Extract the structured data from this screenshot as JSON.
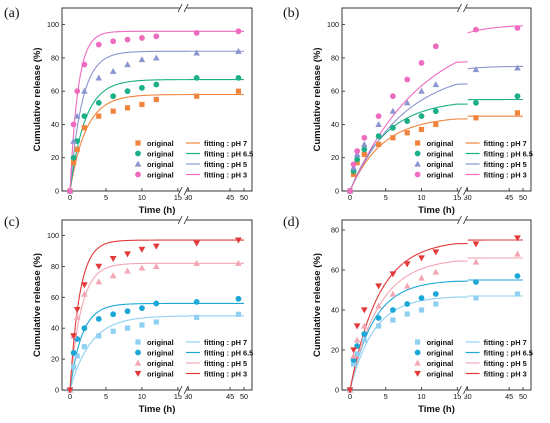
{
  "figure": {
    "colors": {
      "pH 7": "#f0843c",
      "pH 6.5": "#1aaf86",
      "pH 5": "#8b95cf",
      "pH 3": "#ee6bbf",
      "c_pH 7": "#8fd0f2",
      "c_pH 6.5": "#1ba7d8",
      "c_pH 5": "#f3a6b3",
      "c_pH 3": "#e23a3a"
    }
  },
  "chart_data": [
    {
      "panel": "(a)",
      "type": "scatter",
      "xlabel": "Time (h)",
      "ylabel": "Cumulative release (%)",
      "ylim": [
        0,
        110
      ],
      "yticks": [
        0,
        20,
        40,
        60,
        80,
        100
      ],
      "xticks": [
        "0",
        "5",
        "10",
        "15",
        "30",
        "45",
        "50"
      ],
      "x_axis_break": "between 15 and 30",
      "markers": [
        "square",
        "circle",
        "triangle-up",
        "circle"
      ],
      "legend_position": "bottom-right",
      "series": [
        {
          "name": "original",
          "fit_name": "fitting : pH 7",
          "key": "pH 7",
          "x": [
            0,
            0.5,
            1,
            2,
            4,
            6,
            8,
            10,
            12,
            24,
            48
          ],
          "y": [
            0,
            17,
            25,
            38,
            45,
            48,
            50,
            52,
            55,
            57,
            60
          ],
          "fit_ymax": 58,
          "fit_k": 0.45
        },
        {
          "name": "original",
          "fit_name": "fitting : pH 6.5",
          "key": "pH 6.5",
          "x": [
            0,
            0.5,
            1,
            2,
            4,
            6,
            8,
            10,
            12,
            24,
            48
          ],
          "y": [
            0,
            20,
            30,
            45,
            53,
            57,
            60,
            62,
            64,
            68,
            68
          ],
          "fit_ymax": 67,
          "fit_k": 0.48
        },
        {
          "name": "original",
          "fit_name": "fitting : pH 5",
          "key": "pH 5",
          "x": [
            0,
            0.5,
            1,
            2,
            4,
            6,
            8,
            10,
            12,
            24,
            48
          ],
          "y": [
            0,
            30,
            45,
            60,
            68,
            72,
            76,
            79,
            80,
            83,
            84
          ],
          "fit_ymax": 84,
          "fit_k": 0.6
        },
        {
          "name": "original",
          "fit_name": "fitting : pH 3",
          "key": "pH 3",
          "x": [
            0,
            0.5,
            1,
            2,
            4,
            6,
            8,
            10,
            12,
            24,
            48
          ],
          "y": [
            0,
            40,
            60,
            76,
            88,
            90,
            91,
            92,
            93,
            95,
            96
          ],
          "fit_ymax": 96,
          "fit_k": 0.9
        }
      ]
    },
    {
      "panel": "(b)",
      "type": "scatter",
      "xlabel": "Time (h)",
      "ylabel": "Cumulative release (%)",
      "ylim": [
        0,
        110
      ],
      "yticks": [
        0,
        20,
        40,
        60,
        80,
        100
      ],
      "xticks": [
        "0",
        "5",
        "10",
        "15",
        "30",
        "45",
        "50"
      ],
      "x_axis_break": "between 15 and 30",
      "markers": [
        "square",
        "circle",
        "triangle-up",
        "circle"
      ],
      "legend_position": "bottom-right",
      "series": [
        {
          "name": "original",
          "fit_name": "fitting : pH 7",
          "key": "pH 7",
          "x": [
            0,
            0.5,
            1,
            2,
            4,
            6,
            8,
            10,
            12,
            24,
            48
          ],
          "y": [
            0,
            10,
            17,
            22,
            28,
            32,
            35,
            37,
            40,
            44,
            47
          ],
          "fit_ymax": 45,
          "fit_k": 0.22
        },
        {
          "name": "original",
          "fit_name": "fitting : pH 6.5",
          "key": "pH 6.5",
          "x": [
            0,
            0.5,
            1,
            2,
            4,
            6,
            8,
            10,
            12,
            24,
            48
          ],
          "y": [
            0,
            12,
            19,
            25,
            33,
            38,
            42,
            45,
            48,
            53,
            57
          ],
          "fit_ymax": 55,
          "fit_k": 0.2
        },
        {
          "name": "original",
          "fit_name": "fitting : pH 5",
          "key": "pH 5",
          "x": [
            0,
            0.5,
            1,
            2,
            4,
            6,
            8,
            10,
            12,
            24,
            48
          ],
          "y": [
            0,
            14,
            22,
            28,
            40,
            48,
            53,
            60,
            64,
            73,
            74
          ],
          "fit_ymax": 75,
          "fit_k": 0.13
        },
        {
          "name": "original",
          "fit_name": "fitting : pH 3",
          "key": "pH 3",
          "x": [
            0,
            0.5,
            1,
            2,
            4,
            6,
            8,
            10,
            12,
            24,
            48
          ],
          "y": [
            0,
            16,
            24,
            32,
            45,
            57,
            67,
            77,
            87,
            97,
            98
          ],
          "fit_ymax": 100,
          "fit_k": 0.1
        }
      ]
    },
    {
      "panel": "(c)",
      "type": "scatter",
      "xlabel": "Time (h)",
      "ylabel": "Cumulative release (%)",
      "ylim": [
        0,
        110
      ],
      "yticks": [
        0,
        20,
        40,
        60,
        80,
        100
      ],
      "xticks": [
        "0",
        "5",
        "10",
        "15",
        "30",
        "45",
        "50"
      ],
      "x_axis_break": "between 15 and 30",
      "markers": [
        "square",
        "circle",
        "triangle-up",
        "triangle-down"
      ],
      "legend_position": "bottom-right",
      "series": [
        {
          "name": "original",
          "fit_name": "fitting : pH 7",
          "key": "c_pH 7",
          "x": [
            0,
            0.5,
            1,
            2,
            4,
            6,
            8,
            10,
            12,
            24,
            48
          ],
          "y": [
            0,
            15,
            22,
            28,
            35,
            38,
            40,
            42,
            44,
            47,
            49
          ],
          "fit_ymax": 48,
          "fit_k": 0.35
        },
        {
          "name": "original",
          "fit_name": "fitting : pH 6.5",
          "key": "c_pH 6.5",
          "x": [
            0,
            0.5,
            1,
            2,
            4,
            6,
            8,
            10,
            12,
            24,
            48
          ],
          "y": [
            0,
            24,
            33,
            40,
            46,
            49,
            51,
            53,
            56,
            57,
            59
          ],
          "fit_ymax": 56,
          "fit_k": 0.6
        },
        {
          "name": "original",
          "fit_name": "fitting : pH 5",
          "key": "c_pH 5",
          "x": [
            0,
            0.5,
            1,
            2,
            4,
            6,
            8,
            10,
            12,
            24,
            48
          ],
          "y": [
            0,
            35,
            47,
            62,
            70,
            74,
            77,
            79,
            80,
            82,
            82
          ],
          "fit_ymax": 82,
          "fit_k": 0.65
        },
        {
          "name": "original",
          "fit_name": "fitting : pH 3",
          "key": "c_pH 3",
          "x": [
            0,
            0.5,
            1,
            2,
            4,
            6,
            8,
            10,
            12,
            24,
            48
          ],
          "y": [
            0,
            35,
            52,
            68,
            80,
            85,
            88,
            91,
            93,
            95,
            97
          ],
          "fit_ymax": 97,
          "fit_k": 0.75
        }
      ]
    },
    {
      "panel": "(d)",
      "type": "scatter",
      "xlabel": "Time (h)",
      "ylabel": "Cumulative release (%)",
      "ylim": [
        0,
        85
      ],
      "yticks": [
        0,
        20,
        40,
        60,
        80
      ],
      "xticks": [
        "0",
        "5",
        "10",
        "15",
        "30",
        "45",
        "50"
      ],
      "x_axis_break": "between 15 and 30",
      "markers": [
        "square",
        "circle",
        "triangle-up",
        "triangle-down"
      ],
      "legend_position": "bottom-right",
      "series": [
        {
          "name": "original",
          "fit_name": "fitting : pH 7",
          "key": "c_pH 7",
          "x": [
            0,
            0.5,
            1,
            2,
            4,
            6,
            8,
            10,
            12,
            24,
            48
          ],
          "y": [
            0,
            13,
            18,
            25,
            32,
            35,
            38,
            40,
            43,
            46,
            48
          ],
          "fit_ymax": 47,
          "fit_k": 0.3
        },
        {
          "name": "original",
          "fit_name": "fitting : pH 6.5",
          "key": "c_pH 6.5",
          "x": [
            0,
            0.5,
            1,
            2,
            4,
            6,
            8,
            10,
            12,
            24,
            48
          ],
          "y": [
            0,
            15,
            22,
            28,
            36,
            40,
            43,
            46,
            48,
            54,
            57
          ],
          "fit_ymax": 55,
          "fit_k": 0.3
        },
        {
          "name": "original",
          "fit_name": "fitting : pH 5",
          "key": "c_pH 5",
          "x": [
            0,
            0.5,
            1,
            2,
            4,
            6,
            8,
            10,
            12,
            24,
            48
          ],
          "y": [
            0,
            17,
            25,
            32,
            42,
            48,
            52,
            56,
            59,
            64,
            68
          ],
          "fit_ymax": 66,
          "fit_k": 0.25
        },
        {
          "name": "original",
          "fit_name": "fitting : pH 3",
          "key": "c_pH 3",
          "x": [
            0,
            0.5,
            1,
            2,
            4,
            6,
            8,
            10,
            12,
            24,
            48
          ],
          "y": [
            0,
            20,
            32,
            40,
            52,
            58,
            63,
            66,
            69,
            73,
            76
          ],
          "fit_ymax": 75,
          "fit_k": 0.25
        }
      ]
    }
  ]
}
